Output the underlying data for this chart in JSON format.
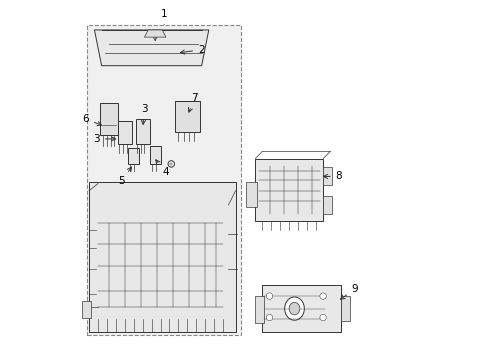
{
  "title": "",
  "background_color": "#ffffff",
  "fig_width": 4.89,
  "fig_height": 3.6,
  "dpi": 100,
  "parts": {
    "labels": [
      "1",
      "2",
      "3",
      "3",
      "4",
      "5",
      "6",
      "7",
      "8",
      "9"
    ],
    "line_color": "#333333",
    "text_color": "#000000"
  }
}
